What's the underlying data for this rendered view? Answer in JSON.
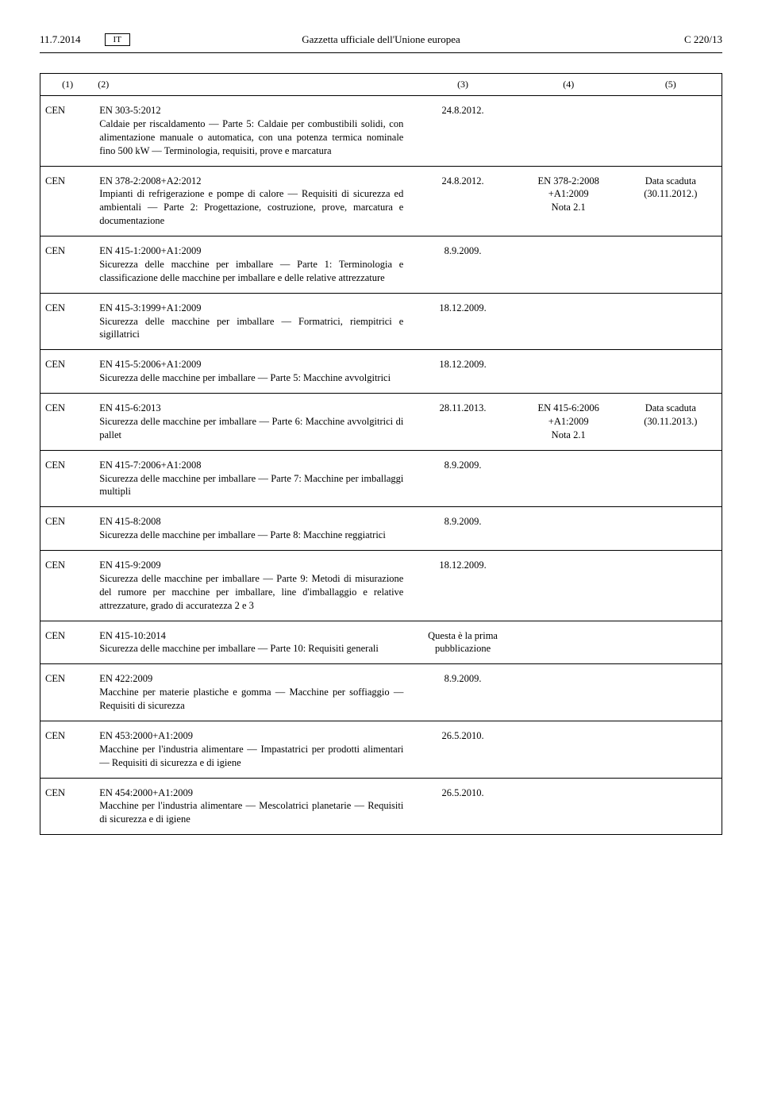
{
  "header": {
    "date": "11.7.2014",
    "lang": "IT",
    "title": "Gazzetta ufficiale dell'Unione europea",
    "pageRef": "C 220/13"
  },
  "columns": {
    "c1": "(1)",
    "c2": "(2)",
    "c3": "(3)",
    "c4": "(4)",
    "c5": "(5)"
  },
  "rows": [
    {
      "org": "CEN",
      "desc": "EN 303-5:2012\nCaldaie per riscaldamento — Parte 5: Caldaie per combustibili solidi, con alimentazione manuale o automatica, con una potenza termica nominale fino 500 kW — Terminologia, requisiti, prove e marcatura",
      "date": "24.8.2012.",
      "ref": "",
      "note": ""
    },
    {
      "org": "CEN",
      "desc": "EN 378-2:2008+A2:2012\nImpianti di refrigerazione e pompe di calore — Requisiti di sicurezza ed ambientali — Parte 2: Progettazione, costruzione, prove, marcatura e documentazione",
      "date": "24.8.2012.",
      "ref": "EN 378-2:2008\n+A1:2009\nNota 2.1",
      "note": "Data scaduta\n(30.11.2012.)"
    },
    {
      "org": "CEN",
      "desc": "EN 415-1:2000+A1:2009\nSicurezza delle macchine per imballare — Parte 1: Terminologia e classificazione delle macchine per imballare e delle relative attrezzature",
      "date": "8.9.2009.",
      "ref": "",
      "note": ""
    },
    {
      "org": "CEN",
      "desc": "EN 415-3:1999+A1:2009\nSicurezza delle macchine per imballare — Formatrici, riempitrici e sigillatrici",
      "date": "18.12.2009.",
      "ref": "",
      "note": ""
    },
    {
      "org": "CEN",
      "desc": "EN 415-5:2006+A1:2009\nSicurezza delle macchine per imballare — Parte 5: Macchine avvolgitrici",
      "date": "18.12.2009.",
      "ref": "",
      "note": ""
    },
    {
      "org": "CEN",
      "desc": "EN 415-6:2013\nSicurezza delle macchine per imballare — Parte 6: Macchine avvolgitrici di pallet",
      "date": "28.11.2013.",
      "ref": "EN 415-6:2006\n+A1:2009\nNota 2.1",
      "note": "Data scaduta\n(30.11.2013.)"
    },
    {
      "org": "CEN",
      "desc": "EN 415-7:2006+A1:2008\nSicurezza delle macchine per imballare — Parte 7: Macchine per imballaggi multipli",
      "date": "8.9.2009.",
      "ref": "",
      "note": ""
    },
    {
      "org": "CEN",
      "desc": "EN 415-8:2008\nSicurezza delle macchine per imballare — Parte 8: Macchine reggiatrici",
      "date": "8.9.2009.",
      "ref": "",
      "note": ""
    },
    {
      "org": "CEN",
      "desc": "EN 415-9:2009\nSicurezza delle macchine per imballare — Parte 9: Metodi di misurazione del rumore per macchine per imballare, line d'imballaggio e relative attrezzature, grado di accuratezza 2 e 3",
      "date": "18.12.2009.",
      "ref": "",
      "note": ""
    },
    {
      "org": "CEN",
      "desc": "EN 415-10:2014\nSicurezza delle macchine per imballare — Parte 10: Requisiti generali",
      "date": "Questa è la prima pubblicazione",
      "ref": "",
      "note": ""
    },
    {
      "org": "CEN",
      "desc": "EN 422:2009\nMacchine per materie plastiche e gomma — Macchine per soffiaggio — Requisiti di sicurezza",
      "date": "8.9.2009.",
      "ref": "",
      "note": ""
    },
    {
      "org": "CEN",
      "desc": "EN 453:2000+A1:2009\nMacchine per l'industria alimentare — Impasta­trici per prodotti alimentari — Requisiti di sicurezza e di igiene",
      "date": "26.5.2010.",
      "ref": "",
      "note": ""
    },
    {
      "org": "CEN",
      "desc": "EN 454:2000+A1:2009\nMacchine per l'industria alimentare — Mescola­trici planetarie — Requisiti di sicurezza e di igiene",
      "date": "26.5.2010.",
      "ref": "",
      "note": ""
    }
  ]
}
